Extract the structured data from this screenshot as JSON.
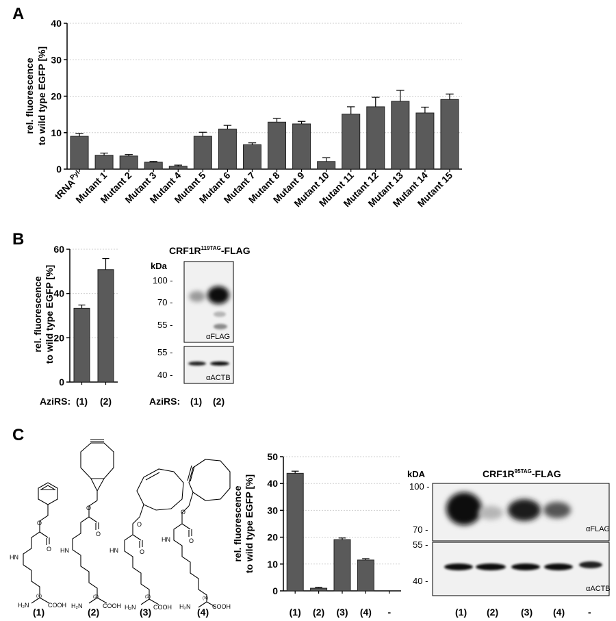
{
  "panels": {
    "a": "A",
    "b": "B",
    "c": "C"
  },
  "colors": {
    "bar": "#5a5a5a",
    "grid": "#cfcfcf",
    "blot_bg": "#f1f1f1",
    "band": "#111111"
  },
  "chart_data": [
    {
      "type": "bar",
      "panel": "A",
      "categories": [
        "tRNA",
        "Mutant 1",
        "Mutant 2",
        "Mutant 3",
        "Mutant 4",
        "Mutant 5",
        "Mutant 6",
        "Mutant 7",
        "Mutant 8",
        "Mutant 9",
        "Mutant 10",
        "Mutant 11",
        "Mutant 12",
        "Mutant 13",
        "Mutant 14",
        "Mutant 15"
      ],
      "first_category_superscript": "Pyl",
      "values": [
        9.0,
        3.8,
        3.6,
        1.9,
        0.8,
        9.0,
        11.0,
        6.7,
        12.9,
        12.4,
        2.1,
        15.1,
        17.1,
        18.6,
        15.4,
        19.1
      ],
      "errors": [
        0.8,
        0.6,
        0.4,
        0.2,
        0.3,
        1.1,
        1.0,
        0.5,
        1.0,
        0.7,
        1.0,
        2.0,
        2.6,
        3.0,
        1.6,
        1.5
      ],
      "ylim": [
        0,
        40
      ],
      "yticks": [
        0,
        10,
        20,
        30,
        40
      ],
      "ylabel_line1": "rel. fluorescence",
      "ylabel_line2": "to wild type EGFP [%]",
      "grid": true
    },
    {
      "type": "bar",
      "panel": "B",
      "categories": [
        "(1)",
        "(2)"
      ],
      "values": [
        33.3,
        50.8
      ],
      "errors": [
        1.5,
        5.0
      ],
      "ylim": [
        0,
        60
      ],
      "yticks": [
        0,
        20,
        40,
        60
      ],
      "ylabel_line1": "rel. fluorescence",
      "ylabel_line2": "to wild type EGFP [%]",
      "category_prefix": "AziRS:",
      "grid": true
    },
    {
      "type": "bar",
      "panel": "C",
      "categories": [
        "(1)",
        "(2)",
        "(3)",
        "(4)",
        "-"
      ],
      "values": [
        43.8,
        1.0,
        19.1,
        11.5,
        0
      ],
      "errors": [
        0.8,
        0.3,
        0.6,
        0.5,
        0
      ],
      "ylim": [
        0,
        50
      ],
      "yticks": [
        0,
        10,
        20,
        30,
        40,
        50
      ],
      "ylabel_line1": "rel. fluorescence",
      "ylabel_line2": "to wild type EGFP [%]",
      "grid": true
    }
  ],
  "blot_b": {
    "title_main": "CRF1R",
    "title_sup": "119TAG",
    "title_suffix": "-FLAG",
    "kda_label": "kDa",
    "markers_top": [
      "100 -",
      "70 -",
      "55 -"
    ],
    "markers_bottom": [
      "55 -",
      "40 -"
    ],
    "antibody_top": "αFLAG",
    "antibody_bottom": "αACTB",
    "lane_prefix": "AziRS:",
    "lanes": [
      "(1)",
      "(2)"
    ]
  },
  "blot_c": {
    "title_main": "CRF1R",
    "title_sup": "95TAG",
    "title_suffix": "-FLAG",
    "kda_label": "kDA",
    "markers_top": [
      "100 -",
      "70 -"
    ],
    "markers_bottom": [
      "55 -",
      "40 -"
    ],
    "antibody_top": "αFLAG",
    "antibody_bottom": "αACTB",
    "lanes": [
      "(1)",
      "(2)",
      "(3)",
      "(4)",
      "-"
    ]
  },
  "structures": {
    "labels": [
      "(1)",
      "(2)",
      "(3)",
      "(4)"
    ],
    "hn": "HN",
    "o": "O",
    "h2n": "H₂N",
    "cooh": "COOH",
    "stereo": "(S)"
  }
}
